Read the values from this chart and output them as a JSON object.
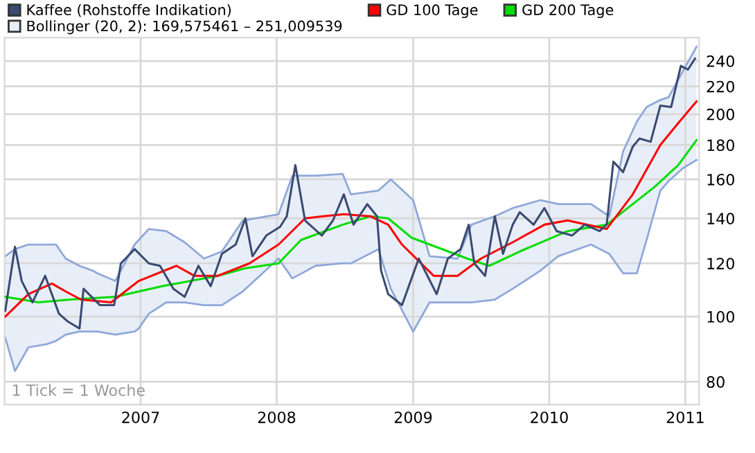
{
  "chart_data": {
    "type": "line",
    "log": "y",
    "grid": true,
    "legend": "top",
    "marker": "none",
    "line_style": "solid",
    "xlim": [
      "2006-01-01",
      "2011-02-07"
    ],
    "xticks": [
      "2007",
      "2008",
      "2009",
      "2010",
      "2011"
    ],
    "ylim": [
      74,
      260
    ],
    "yticks": [
      80,
      100,
      120,
      140,
      160,
      180,
      200,
      220,
      240
    ],
    "annotations": [
      "1 Tick = 1 Woche"
    ],
    "series": [
      {
        "name": "Kaffee (Rohstoffe Indikation)",
        "color": "#3a4a70",
        "x": [
          "2006-01-03",
          "2006-01-29",
          "2006-02-16",
          "2006-03-17",
          "2006-04-20",
          "2006-05-27",
          "2006-06-18",
          "2006-07-21",
          "2006-08-01",
          "2006-09-14",
          "2006-10-22",
          "2006-11-09",
          "2006-12-16",
          "2007-01-23",
          "2007-02-22",
          "2007-03-30",
          "2007-04-29",
          "2007-06-05",
          "2007-07-08",
          "2007-08-07",
          "2007-09-13",
          "2007-10-09",
          "2007-10-28",
          "2007-12-04",
          "2008-01-10",
          "2008-01-28",
          "2008-02-20",
          "2008-03-17",
          "2008-05-01",
          "2008-05-31",
          "2008-06-29",
          "2008-07-25",
          "2008-08-31",
          "2008-09-26",
          "2008-10-07",
          "2008-10-26",
          "2008-12-02",
          "2009-01-16",
          "2009-03-05",
          "2009-04-04",
          "2009-05-08",
          "2009-05-30",
          "2009-06-14",
          "2009-07-13",
          "2009-08-08",
          "2009-08-30",
          "2009-09-25",
          "2009-10-14",
          "2009-11-20",
          "2009-12-19",
          "2010-01-21",
          "2010-03-03",
          "2010-04-06",
          "2010-05-16",
          "2010-06-04",
          "2010-06-22",
          "2010-07-18",
          "2010-08-13",
          "2010-08-31",
          "2010-09-30",
          "2010-10-26",
          "2010-11-24",
          "2010-12-20",
          "2011-01-08",
          "2011-01-27"
        ],
        "values": [
          102,
          127,
          113,
          105,
          115,
          101,
          98.5,
          96,
          110,
          104,
          104,
          120,
          126,
          120,
          119,
          110,
          107,
          119,
          111,
          124,
          128,
          140,
          123,
          132,
          136,
          141,
          168,
          139,
          132,
          139,
          152,
          137,
          147,
          141,
          117,
          108,
          104,
          122,
          108,
          122,
          126,
          137,
          120,
          115,
          141,
          124,
          137,
          143,
          137,
          145,
          134,
          132,
          137,
          134,
          137,
          170,
          164,
          179,
          184,
          182,
          206,
          205,
          236,
          233,
          242
        ]
      },
      {
        "name": "GD 100 Tage",
        "type": "line",
        "color": "#ff0000",
        "x": [
          "2006-01-03",
          "2006-03-06",
          "2006-05-08",
          "2006-06-14",
          "2006-07-25",
          "2006-10-14",
          "2006-12-27",
          "2007-04-07",
          "2007-05-25",
          "2007-07-27",
          "2007-10-20",
          "2008-01-06",
          "2008-03-17",
          "2008-05-04",
          "2008-06-29",
          "2008-09-08",
          "2008-10-26",
          "2008-12-02",
          "2009-02-25",
          "2009-04-30",
          "2009-07-02",
          "2009-09-25",
          "2009-12-19",
          "2010-02-19",
          "2010-06-04",
          "2010-08-13",
          "2010-10-26",
          "2010-12-13",
          "2011-01-31"
        ],
        "values": [
          100,
          108,
          112,
          109,
          106,
          105,
          113,
          119,
          115,
          115,
          120,
          128,
          140,
          141,
          142,
          141,
          137,
          128,
          115,
          115,
          122,
          129,
          137,
          139,
          135,
          152,
          180,
          194,
          209
        ]
      },
      {
        "name": "GD 200 Tage",
        "type": "line",
        "color": "#00dd00",
        "x": [
          "2006-01-03",
          "2006-04-02",
          "2006-06-25",
          "2006-10-25",
          "2007-03-01",
          "2007-07-27",
          "2007-10-09",
          "2008-01-06",
          "2008-03-06",
          "2008-06-26",
          "2008-09-08",
          "2008-10-26",
          "2008-12-28",
          "2009-05-26",
          "2009-07-24",
          "2009-10-14",
          "2010-02-19",
          "2010-06-04",
          "2010-10-11",
          "2010-12-13",
          "2011-01-31"
        ],
        "values": [
          107,
          105,
          106,
          107,
          111,
          115,
          118,
          120,
          130,
          137,
          141,
          140,
          131,
          122,
          119,
          125,
          134,
          137,
          156,
          168,
          183
        ]
      },
      {
        "name": "Bollinger (20, 2): 169,575461 – 251,009539",
        "type": "area",
        "color": "#e8eef8",
        "x": [
          "2006-01-03",
          "2006-01-29",
          "2006-03-06",
          "2006-04-24",
          "2006-05-19",
          "2006-06-14",
          "2006-07-21",
          "2006-08-26",
          "2006-09-07",
          "2006-10-25",
          "2006-12-16",
          "2006-12-27",
          "2007-01-23",
          "2007-03-11",
          "2007-04-29",
          "2007-06-20",
          "2007-08-07",
          "2007-10-02",
          "2008-01-06",
          "2008-02-12",
          "2008-04-14",
          "2008-06-26",
          "2008-07-18",
          "2008-09-30",
          "2008-11-02",
          "2009-01-01",
          "2009-02-14",
          "2009-04-30",
          "2009-06-06",
          "2009-08-08",
          "2009-09-25",
          "2009-12-08",
          "2010-01-25",
          "2010-04-23",
          "2010-06-11",
          "2010-07-18",
          "2010-08-24",
          "2010-09-19",
          "2010-10-26",
          "2010-11-17",
          "2010-12-24",
          "2011-01-31"
        ],
        "values": [
          123,
          126,
          128,
          128,
          128,
          122,
          119,
          117,
          116,
          113,
          128,
          130,
          135,
          134,
          129,
          122,
          125,
          139,
          142,
          162,
          162,
          163,
          152,
          154,
          160,
          149,
          123,
          122,
          137,
          141,
          145,
          149,
          147,
          147,
          141,
          176,
          195,
          205,
          210,
          212,
          231,
          252
        ]
      },
      {
        "type": "line",
        "color": "#8fa8d8",
        "x": [
          "2006-01-03",
          "2006-01-29",
          "2006-03-06",
          "2006-04-24",
          "2006-05-19",
          "2006-06-14",
          "2006-07-21",
          "2006-08-26",
          "2006-09-07",
          "2006-10-25",
          "2006-12-16",
          "2006-12-27",
          "2007-01-23",
          "2007-03-11",
          "2007-04-29",
          "2007-06-20",
          "2007-08-07",
          "2007-10-02",
          "2008-01-06",
          "2008-02-12",
          "2008-04-14",
          "2008-06-26",
          "2008-07-18",
          "2008-09-30",
          "2008-11-02",
          "2009-01-01",
          "2009-02-14",
          "2009-04-30",
          "2009-06-06",
          "2009-08-08",
          "2009-09-25",
          "2009-12-08",
          "2010-01-25",
          "2010-04-23",
          "2010-06-11",
          "2010-07-18",
          "2010-08-24",
          "2010-09-19",
          "2010-10-26",
          "2010-11-17",
          "2010-12-24",
          "2011-01-31"
        ],
        "values": [
          93,
          83,
          90,
          91,
          92,
          94,
          95,
          95,
          95,
          94,
          95,
          96,
          101,
          105,
          105,
          104,
          104,
          109,
          122,
          114,
          119,
          120,
          120,
          126,
          110,
          95,
          105,
          105,
          105,
          106,
          110,
          117,
          123,
          128,
          124,
          116,
          116,
          130,
          154,
          159,
          166,
          171
        ]
      }
    ]
  }
}
